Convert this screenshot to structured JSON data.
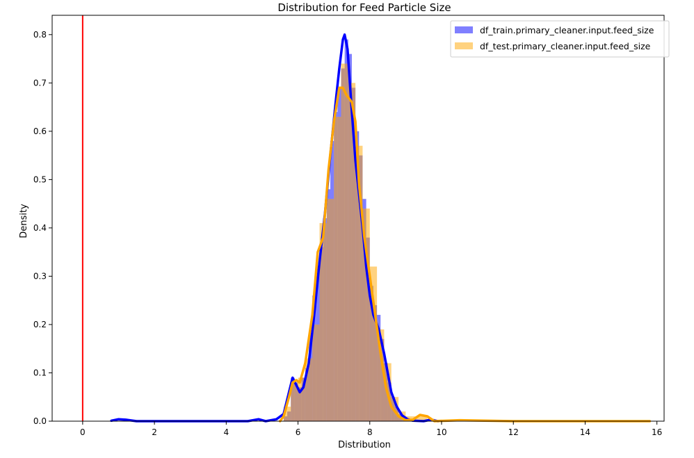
{
  "chart_data": {
    "type": "histogram",
    "title": "Distribution for Feed Particle Size",
    "xlabel": "Distribution",
    "ylabel": "Density",
    "xlim": [
      -0.85,
      16.2
    ],
    "ylim": [
      0,
      0.84
    ],
    "xticks": [
      0,
      2,
      4,
      6,
      8,
      10,
      12,
      14,
      16
    ],
    "xtick_labels": [
      "0",
      "2",
      "4",
      "6",
      "8",
      "10",
      "12",
      "14",
      "16"
    ],
    "yticks": [
      0.0,
      0.1,
      0.2,
      0.3,
      0.4,
      0.5,
      0.6,
      0.7,
      0.8
    ],
    "ytick_labels": [
      "0.0",
      "0.1",
      "0.2",
      "0.3",
      "0.4",
      "0.5",
      "0.6",
      "0.7",
      "0.8"
    ],
    "grid": false,
    "legend_position": "top-right",
    "vertical_line": {
      "x": 0,
      "color": "#ff0000"
    },
    "series": [
      {
        "name": "df_train.primary_cleaner.input.feed_size",
        "color": "#0000ff",
        "bin_width": 0.1,
        "bins": [
          [
            5.6,
            0.01
          ],
          [
            5.7,
            0.02
          ],
          [
            5.8,
            0.09
          ],
          [
            5.9,
            0.08
          ],
          [
            6.0,
            0.07
          ],
          [
            6.1,
            0.09
          ],
          [
            6.2,
            0.11
          ],
          [
            6.3,
            0.18
          ],
          [
            6.4,
            0.26
          ],
          [
            6.5,
            0.32
          ],
          [
            6.6,
            0.36
          ],
          [
            6.7,
            0.42
          ],
          [
            6.8,
            0.48
          ],
          [
            6.9,
            0.58
          ],
          [
            7.0,
            0.64
          ],
          [
            7.1,
            0.69
          ],
          [
            7.2,
            0.73
          ],
          [
            7.3,
            0.79
          ],
          [
            7.4,
            0.76
          ],
          [
            7.5,
            0.69
          ],
          [
            7.6,
            0.6
          ],
          [
            7.7,
            0.55
          ],
          [
            7.8,
            0.46
          ],
          [
            7.9,
            0.38
          ],
          [
            8.0,
            0.28
          ],
          [
            8.1,
            0.24
          ],
          [
            8.2,
            0.22
          ],
          [
            8.3,
            0.17
          ],
          [
            8.4,
            0.12
          ],
          [
            8.5,
            0.08
          ],
          [
            8.6,
            0.05
          ],
          [
            8.7,
            0.03
          ],
          [
            8.8,
            0.015
          ],
          [
            8.9,
            0.01
          ],
          [
            9.0,
            0.005
          ]
        ],
        "kde": [
          [
            0.8,
            0.001
          ],
          [
            1.0,
            0.004
          ],
          [
            1.2,
            0.003
          ],
          [
            1.5,
            0.0
          ],
          [
            3.0,
            0.0
          ],
          [
            4.6,
            0.0
          ],
          [
            4.9,
            0.004
          ],
          [
            5.1,
            0.0
          ],
          [
            5.4,
            0.004
          ],
          [
            5.6,
            0.015
          ],
          [
            5.75,
            0.06
          ],
          [
            5.85,
            0.09
          ],
          [
            5.95,
            0.075
          ],
          [
            6.05,
            0.06
          ],
          [
            6.15,
            0.07
          ],
          [
            6.3,
            0.12
          ],
          [
            6.45,
            0.22
          ],
          [
            6.6,
            0.33
          ],
          [
            6.75,
            0.43
          ],
          [
            6.9,
            0.55
          ],
          [
            7.05,
            0.66
          ],
          [
            7.15,
            0.73
          ],
          [
            7.25,
            0.79
          ],
          [
            7.3,
            0.8
          ],
          [
            7.38,
            0.77
          ],
          [
            7.5,
            0.64
          ],
          [
            7.6,
            0.54
          ],
          [
            7.7,
            0.47
          ],
          [
            7.8,
            0.4
          ],
          [
            7.9,
            0.32
          ],
          [
            8.0,
            0.26
          ],
          [
            8.1,
            0.22
          ],
          [
            8.25,
            0.19
          ],
          [
            8.4,
            0.14
          ],
          [
            8.5,
            0.1
          ],
          [
            8.6,
            0.06
          ],
          [
            8.75,
            0.03
          ],
          [
            8.9,
            0.012
          ],
          [
            9.05,
            0.004
          ],
          [
            9.2,
            0.001
          ],
          [
            9.5,
            0.0
          ],
          [
            9.7,
            0.003
          ],
          [
            9.9,
            0.0
          ]
        ]
      },
      {
        "name": "df_test.primary_cleaner.input.feed_size",
        "color": "#ffa500",
        "bin_width": 0.2,
        "bins": [
          [
            5.6,
            0.03
          ],
          [
            5.8,
            0.08
          ],
          [
            6.0,
            0.09
          ],
          [
            6.2,
            0.13
          ],
          [
            6.4,
            0.2
          ],
          [
            6.6,
            0.41
          ],
          [
            6.8,
            0.46
          ],
          [
            7.0,
            0.63
          ],
          [
            7.2,
            0.74
          ],
          [
            7.4,
            0.7
          ],
          [
            7.6,
            0.57
          ],
          [
            7.8,
            0.44
          ],
          [
            8.0,
            0.32
          ],
          [
            8.2,
            0.19
          ],
          [
            8.4,
            0.12
          ],
          [
            8.6,
            0.05
          ],
          [
            8.8,
            0.02
          ],
          [
            9.0,
            0.01
          ],
          [
            9.2,
            0.01
          ],
          [
            9.4,
            0.01
          ],
          [
            9.6,
            0.005
          ],
          [
            9.8,
            0.003
          ],
          [
            10.0,
            0.003
          ],
          [
            10.2,
            0.003
          ],
          [
            10.4,
            0.002
          ]
        ],
        "kde": [
          [
            5.5,
            0.0
          ],
          [
            5.6,
            0.01
          ],
          [
            5.75,
            0.05
          ],
          [
            5.85,
            0.08
          ],
          [
            5.95,
            0.085
          ],
          [
            6.05,
            0.08
          ],
          [
            6.2,
            0.12
          ],
          [
            6.4,
            0.22
          ],
          [
            6.55,
            0.35
          ],
          [
            6.7,
            0.38
          ],
          [
            6.85,
            0.52
          ],
          [
            7.0,
            0.62
          ],
          [
            7.15,
            0.69
          ],
          [
            7.25,
            0.69
          ],
          [
            7.35,
            0.675
          ],
          [
            7.5,
            0.66
          ],
          [
            7.6,
            0.62
          ],
          [
            7.7,
            0.49
          ],
          [
            7.85,
            0.38
          ],
          [
            8.0,
            0.3
          ],
          [
            8.15,
            0.22
          ],
          [
            8.3,
            0.14
          ],
          [
            8.45,
            0.07
          ],
          [
            8.6,
            0.03
          ],
          [
            8.8,
            0.01
          ],
          [
            9.0,
            0.002
          ],
          [
            9.2,
            0.003
          ],
          [
            9.4,
            0.013
          ],
          [
            9.6,
            0.01
          ],
          [
            9.8,
            0.0
          ],
          [
            10.5,
            0.002
          ],
          [
            12,
            0.0
          ],
          [
            14,
            0.0
          ],
          [
            15.8,
            0.0
          ]
        ]
      }
    ]
  }
}
